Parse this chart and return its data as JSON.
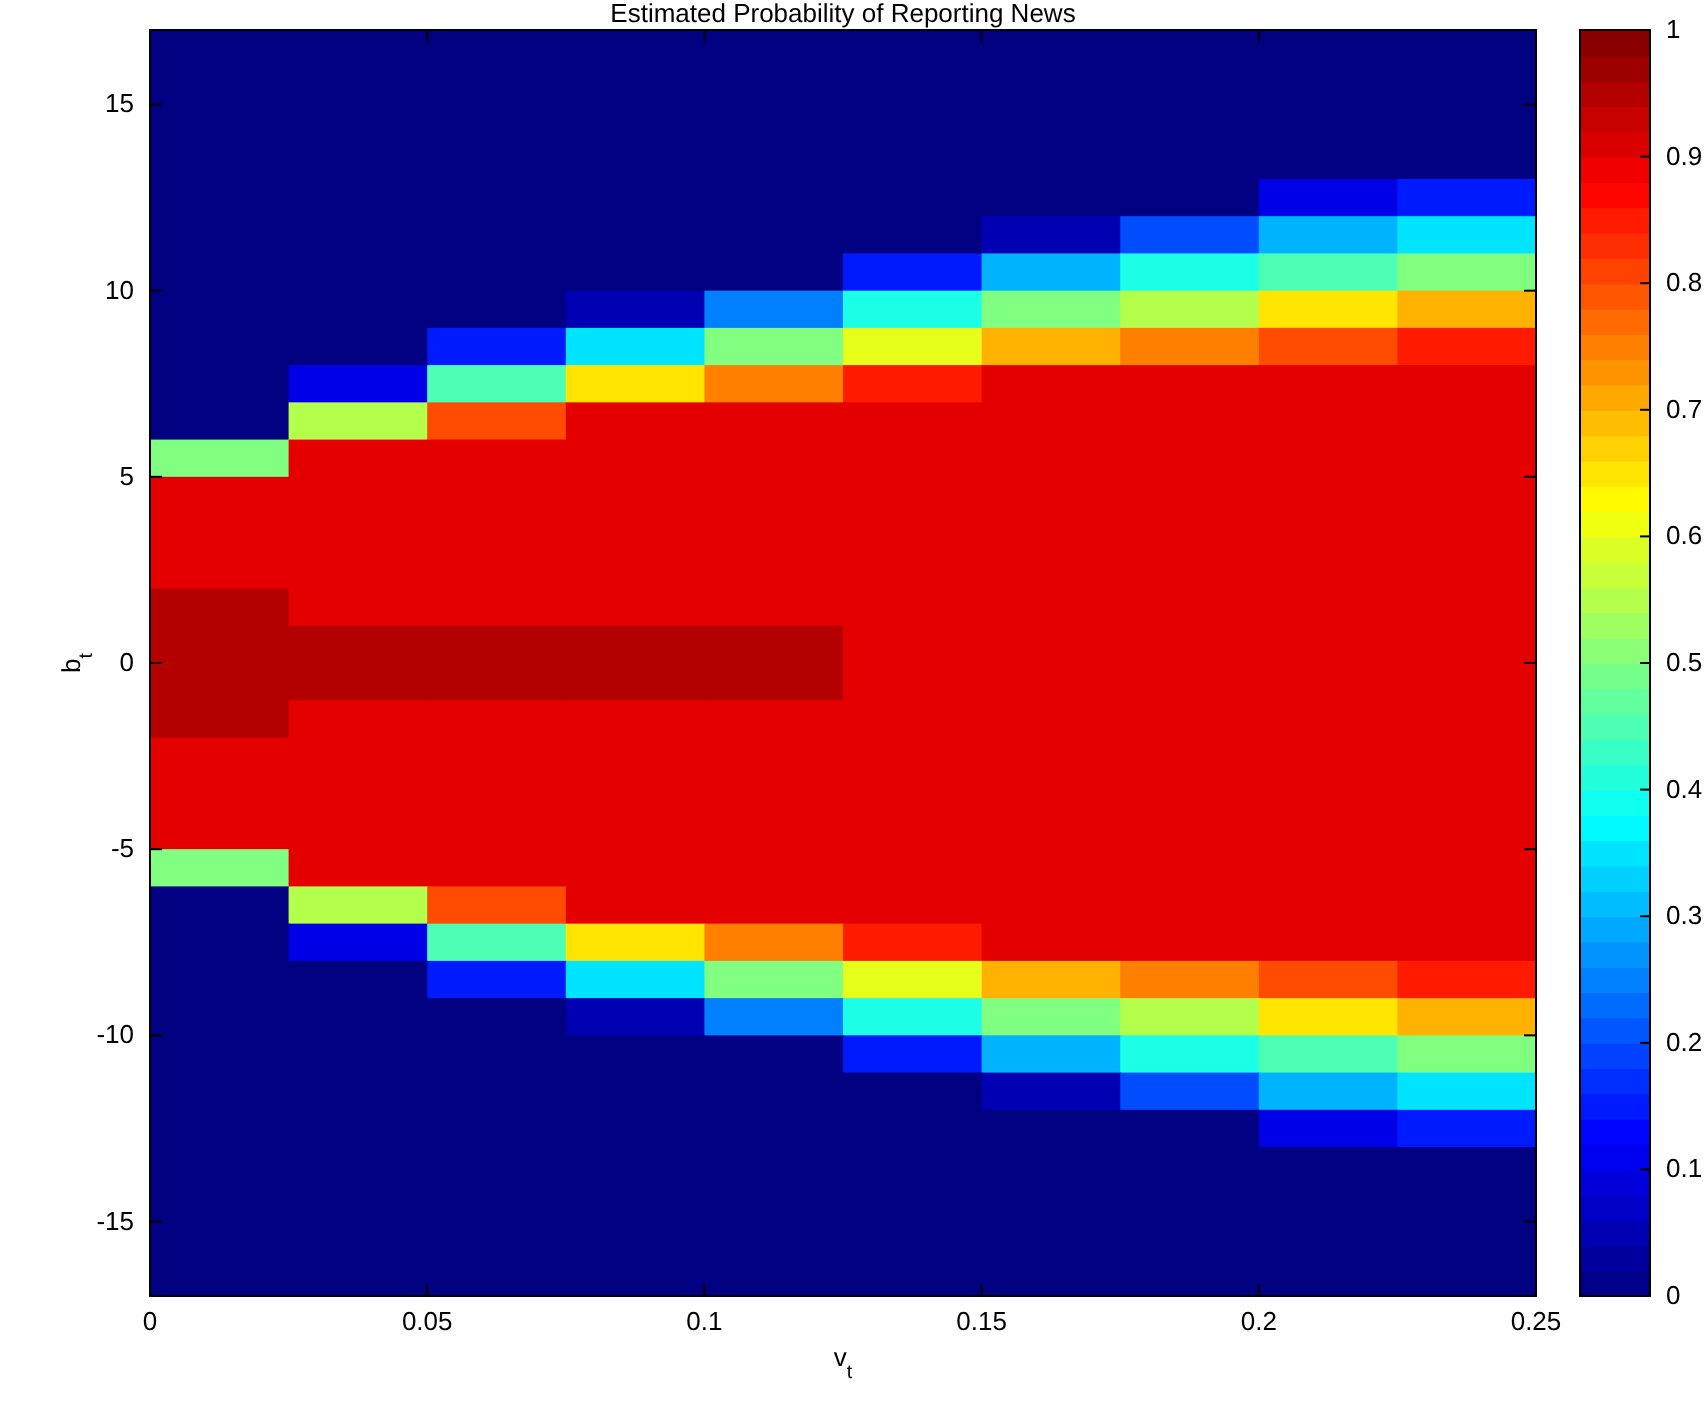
{
  "chart_data": {
    "type": "heatmap",
    "title": "Estimated Probability of Reporting News",
    "xlabel": "v$_{t}$",
    "ylabel": "b$_{t}$",
    "x": [
      0.0125,
      0.0375,
      0.0625,
      0.0875,
      0.1125,
      0.1375,
      0.1625,
      0.1875,
      0.2125,
      0.2375
    ],
    "y": [
      16.5,
      15.5,
      14.5,
      13.5,
      12.5,
      11.5,
      10.5,
      9.5,
      8.5,
      7.5,
      6.5,
      5.5,
      4.5,
      3.5,
      2.5,
      1.5,
      0.5,
      -0.5,
      -1.5,
      -2.5,
      -3.5,
      -4.5,
      -5.5,
      -6.5,
      -7.5,
      -8.5,
      -9.5,
      -10.5,
      -11.5,
      -12.5,
      -13.5,
      -14.5,
      -15.5,
      -16.5
    ],
    "cells": [
      [
        0,
        0,
        0,
        0,
        0,
        0,
        0,
        0,
        0,
        0
      ],
      [
        0,
        0,
        0,
        0,
        0,
        0,
        0,
        0,
        0,
        0
      ],
      [
        0,
        0,
        0,
        0,
        0,
        0,
        0,
        0,
        0,
        0
      ],
      [
        0,
        0,
        0,
        0,
        0,
        0,
        0,
        0,
        0,
        0
      ],
      [
        0,
        0,
        0,
        0,
        0,
        0,
        0,
        0,
        0.1,
        0.15
      ],
      [
        0,
        0,
        0,
        0,
        0,
        0,
        0.05,
        0.2,
        0.3,
        0.35
      ],
      [
        0,
        0,
        0,
        0,
        0,
        0.15,
        0.3,
        0.4,
        0.45,
        0.5
      ],
      [
        0,
        0,
        0,
        0.05,
        0.25,
        0.4,
        0.5,
        0.55,
        0.65,
        0.7
      ],
      [
        0,
        0,
        0.15,
        0.35,
        0.5,
        0.6,
        0.7,
        0.75,
        0.8,
        0.85
      ],
      [
        0,
        0.1,
        0.45,
        0.65,
        0.75,
        0.85,
        0.9,
        0.9,
        0.9,
        0.9
      ],
      [
        0,
        0.55,
        0.8,
        0.9,
        0.9,
        0.9,
        0.9,
        0.9,
        0.9,
        0.9
      ],
      [
        0.5,
        0.9,
        0.9,
        0.9,
        0.9,
        0.9,
        0.9,
        0.9,
        0.9,
        0.9
      ],
      [
        0.9,
        0.9,
        0.9,
        0.9,
        0.9,
        0.9,
        0.9,
        0.9,
        0.9,
        0.9
      ],
      [
        0.9,
        0.9,
        0.9,
        0.9,
        0.9,
        0.9,
        0.9,
        0.9,
        0.9,
        0.9
      ],
      [
        0.9,
        0.9,
        0.9,
        0.9,
        0.9,
        0.9,
        0.9,
        0.9,
        0.9,
        0.9
      ],
      [
        0.95,
        0.9,
        0.9,
        0.9,
        0.9,
        0.9,
        0.9,
        0.9,
        0.9,
        0.9
      ],
      [
        0.95,
        0.95,
        0.95,
        0.95,
        0.95,
        0.9,
        0.9,
        0.9,
        0.9,
        0.9
      ],
      [
        0.95,
        0.95,
        0.95,
        0.95,
        0.95,
        0.9,
        0.9,
        0.9,
        0.9,
        0.9
      ],
      [
        0.95,
        0.9,
        0.9,
        0.9,
        0.9,
        0.9,
        0.9,
        0.9,
        0.9,
        0.9
      ],
      [
        0.9,
        0.9,
        0.9,
        0.9,
        0.9,
        0.9,
        0.9,
        0.9,
        0.9,
        0.9
      ],
      [
        0.9,
        0.9,
        0.9,
        0.9,
        0.9,
        0.9,
        0.9,
        0.9,
        0.9,
        0.9
      ],
      [
        0.9,
        0.9,
        0.9,
        0.9,
        0.9,
        0.9,
        0.9,
        0.9,
        0.9,
        0.9
      ],
      [
        0.5,
        0.9,
        0.9,
        0.9,
        0.9,
        0.9,
        0.9,
        0.9,
        0.9,
        0.9
      ],
      [
        0,
        0.55,
        0.8,
        0.9,
        0.9,
        0.9,
        0.9,
        0.9,
        0.9,
        0.9
      ],
      [
        0,
        0.1,
        0.45,
        0.65,
        0.75,
        0.85,
        0.9,
        0.9,
        0.9,
        0.9
      ],
      [
        0,
        0,
        0.15,
        0.35,
        0.5,
        0.6,
        0.7,
        0.75,
        0.8,
        0.85
      ],
      [
        0,
        0,
        0,
        0.05,
        0.25,
        0.4,
        0.5,
        0.55,
        0.65,
        0.7
      ],
      [
        0,
        0,
        0,
        0,
        0,
        0.15,
        0.3,
        0.4,
        0.45,
        0.5
      ],
      [
        0,
        0,
        0,
        0,
        0,
        0,
        0.05,
        0.2,
        0.3,
        0.35
      ],
      [
        0,
        0,
        0,
        0,
        0,
        0,
        0,
        0,
        0.1,
        0.15
      ],
      [
        0,
        0,
        0,
        0,
        0,
        0,
        0,
        0,
        0,
        0
      ],
      [
        0,
        0,
        0,
        0,
        0,
        0,
        0,
        0,
        0,
        0
      ],
      [
        0,
        0,
        0,
        0,
        0,
        0,
        0,
        0,
        0,
        0
      ],
      [
        0,
        0,
        0,
        0,
        0,
        0,
        0,
        0,
        0,
        0
      ]
    ],
    "clim": [
      0,
      1
    ],
    "cticks": [
      0,
      0.1,
      0.2,
      0.3,
      0.4,
      0.5,
      0.6,
      0.7,
      0.8,
      0.9,
      1
    ],
    "xlim": [
      0,
      0.25
    ],
    "xticks": [
      0,
      0.05,
      0.1,
      0.15,
      0.2,
      0.25
    ],
    "ylim": [
      -17,
      17
    ],
    "yticks": [
      -15,
      -10,
      -5,
      0,
      5,
      10,
      15
    ]
  }
}
